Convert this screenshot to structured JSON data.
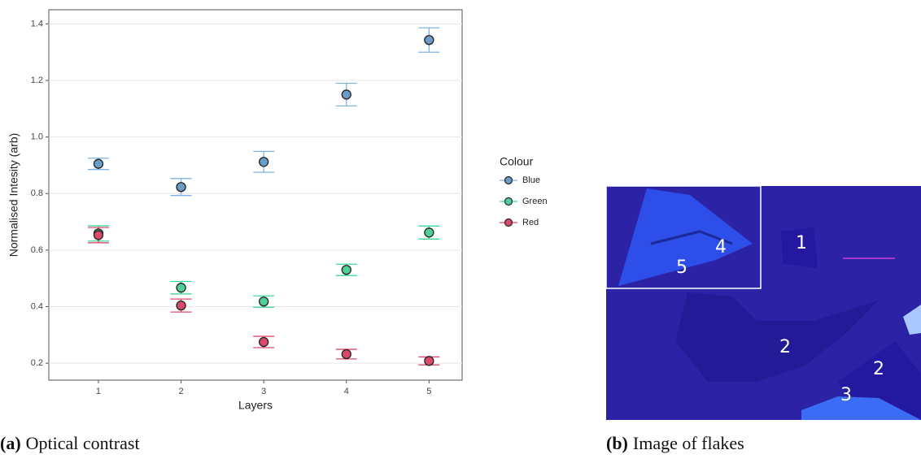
{
  "chart_data": {
    "type": "scatter",
    "x_label": "Layers",
    "y_label": "Normalised Intesity (arb)",
    "x": [
      1,
      2,
      3,
      4,
      5
    ],
    "series": [
      {
        "name": "Blue",
        "color": "#6b9dc8",
        "error_color": "#7fb3e6",
        "values": [
          0.905,
          0.823,
          0.912,
          1.15,
          1.343
        ],
        "errors": [
          0.02,
          0.03,
          0.037,
          0.04,
          0.043
        ]
      },
      {
        "name": "Green",
        "color": "#4fcf96",
        "error_color": "#3ed99a",
        "values": [
          0.659,
          0.467,
          0.418,
          0.53,
          0.662
        ],
        "errors": [
          0.027,
          0.022,
          0.02,
          0.02,
          0.023
        ]
      },
      {
        "name": "Red",
        "color": "#d9496a",
        "error_color": "#e0486b",
        "values": [
          0.653,
          0.404,
          0.275,
          0.232,
          0.208
        ],
        "errors": [
          0.027,
          0.023,
          0.02,
          0.017,
          0.014
        ]
      }
    ],
    "legend_title": "Colour",
    "xlim": [
      0.4,
      5.4
    ],
    "ylim": [
      0.14,
      1.45
    ],
    "xticks": [
      1,
      2,
      3,
      4,
      5
    ],
    "yticks": [
      0.2,
      0.4,
      0.6,
      0.8,
      {
        "value": 1,
        "label": "1.0"
      },
      1.2,
      1.4
    ],
    "grid": true
  },
  "caption_a": {
    "label": "(a)",
    "text": "Optical contrast"
  },
  "caption_b": {
    "label": "(b)",
    "text": "Image of flakes"
  },
  "image_b": {
    "labels": [
      "1",
      "4",
      "5",
      "2",
      "2",
      "3"
    ]
  }
}
